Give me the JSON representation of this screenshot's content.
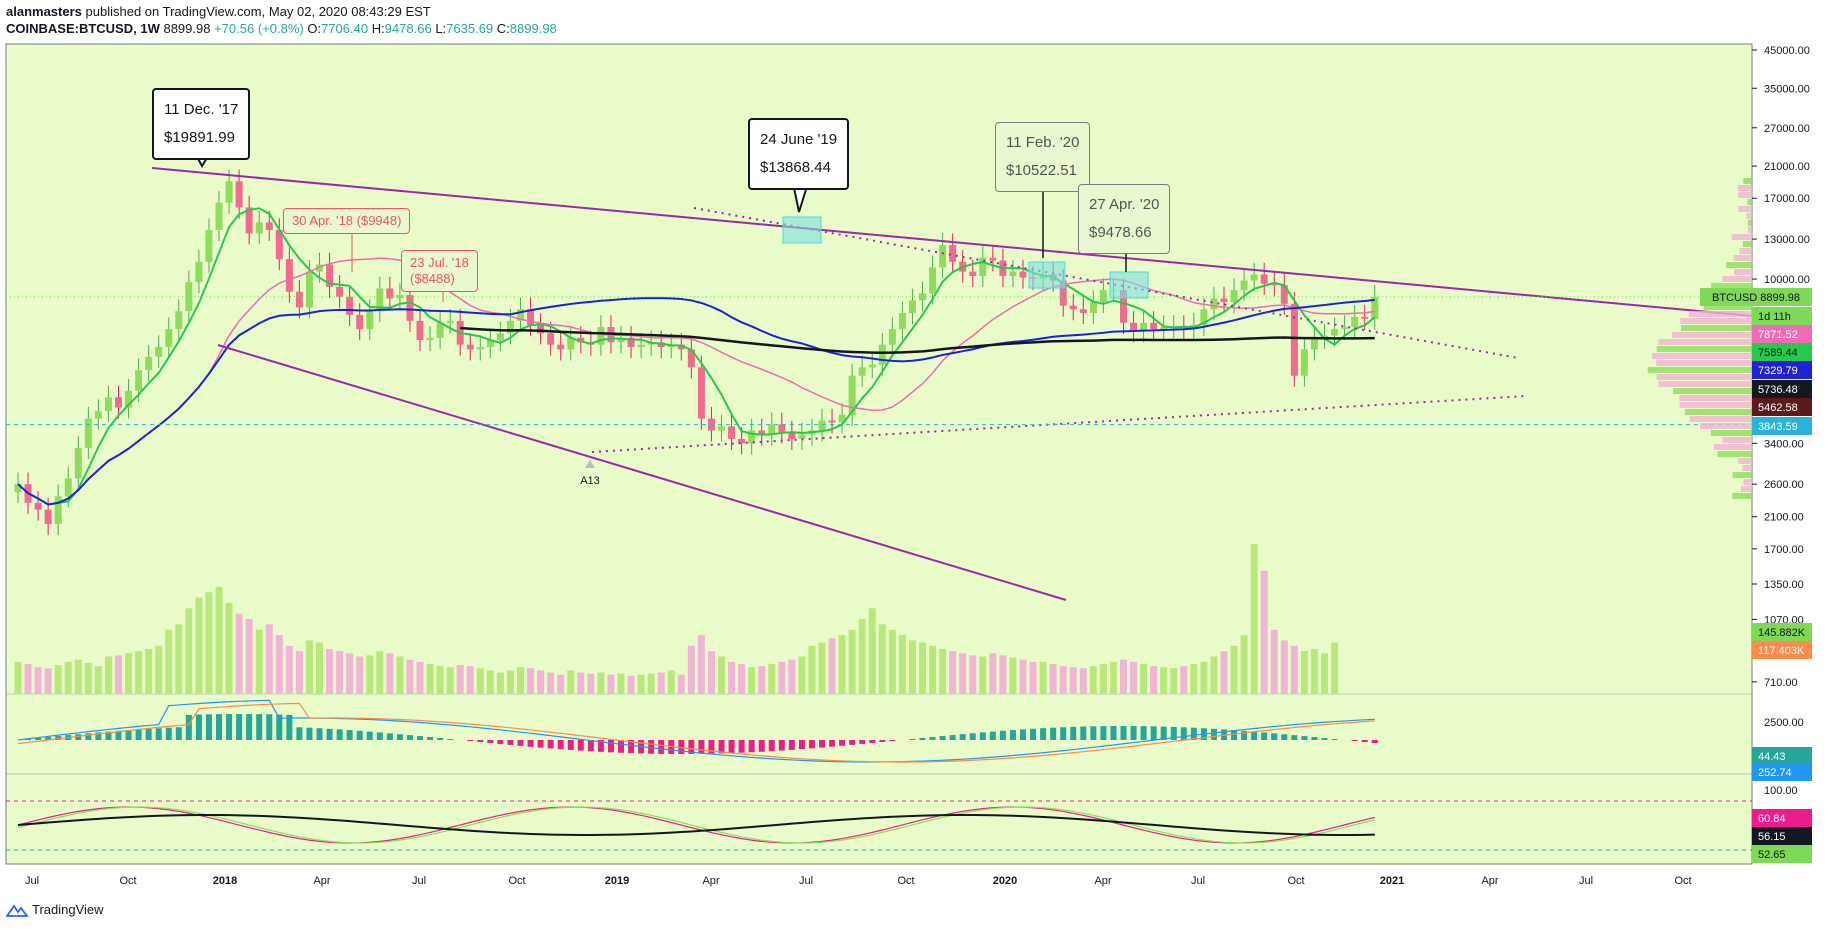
{
  "header": {
    "author": "alanmasters",
    "published": "published on TradingView.com, May 02, 2020 08:43:29 EST",
    "symbol": "COINBASE:BTCUSD, 1W",
    "last": "8899.98",
    "change": "+70.56 (+0.8%)",
    "open_label": "O:",
    "open": "7706.40",
    "high_label": "H:",
    "high": "9478.66",
    "low_label": "L:",
    "low": "7635.69",
    "close_label": "C:",
    "close": "8899.98"
  },
  "footer": {
    "brand": "TradingView",
    "icon": "tradingview-logo-icon"
  },
  "colors": {
    "background": "#e8fbc9",
    "up": "#7ed957",
    "down": "#f7525f",
    "trend": "#9c27b0",
    "ma_blue": "#1e22d6",
    "ma_pink": "#f06bb5"
  },
  "callouts": [
    {
      "date": "11 Dec. '17",
      "price": "$19891.99",
      "style": "dark"
    },
    {
      "date": "24 June '19",
      "price": "$13868.44",
      "style": "dark"
    },
    {
      "date": "11 Feb. '20",
      "price": "$10522.51",
      "style": "grey"
    },
    {
      "date": "27 Apr. '20",
      "price": "$9478.66",
      "style": "grey"
    },
    {
      "text": "30 Apr. '18 ($9948)",
      "style": "orange"
    },
    {
      "line1": "23 Jul. '18",
      "line2": "($8488)",
      "style": "orange"
    }
  ],
  "chart_data": {
    "type": "candlestick",
    "symbol": "COINBASE:BTCUSD",
    "interval": "1W",
    "price_axis": {
      "scale": "log",
      "ticks": [
        "45000.00",
        "35000.00",
        "27000.00",
        "21000.00",
        "17000.00",
        "13000.00",
        "10000.00",
        "3400.00",
        "2600.00",
        "2100.00",
        "1700.00",
        "1350.00",
        "1070.00",
        "710.00"
      ]
    },
    "price_tags": [
      {
        "label": "BTCUSD",
        "value": "8899.98",
        "color": "#7ed957"
      },
      {
        "label": "",
        "value": "1d 11h",
        "color": "#7ed957"
      },
      {
        "label": "",
        "value": "7871.52",
        "color": "#f06bb5"
      },
      {
        "label": "",
        "value": "7589.44",
        "color": "#26c94b"
      },
      {
        "label": "",
        "value": "7329.79",
        "color": "#1e22d6"
      },
      {
        "label": "",
        "value": "5736.48",
        "color": "#131722"
      },
      {
        "label": "",
        "value": "5462.58",
        "color": "#5d1a1a"
      },
      {
        "label": "",
        "value": "3843.59",
        "color": "#26b5d9"
      },
      {
        "label": "",
        "value": "145.882K",
        "color": "#7ed957"
      },
      {
        "label": "",
        "value": "117.403K",
        "color": "#ff8a4c"
      }
    ],
    "macd_axis": {
      "ticks": [
        "2500.00"
      ],
      "tags": [
        {
          "value": "44.43",
          "color": "#26a69a"
        },
        {
          "value": "252.74",
          "color": "#2196f3"
        }
      ]
    },
    "rsi_axis": {
      "ticks": [
        "100.00"
      ],
      "tags": [
        {
          "value": "60.84",
          "color": "#e91e8c"
        },
        {
          "value": "56.15",
          "color": "#131722"
        },
        {
          "value": "52.65",
          "color": "#7ed957"
        }
      ]
    },
    "time_axis": [
      "Jul",
      "Oct",
      "2018",
      "Apr",
      "Jul",
      "Oct",
      "2019",
      "Apr",
      "Jul",
      "Oct",
      "2020",
      "Apr",
      "Jul",
      "Oct",
      "2021",
      "Apr",
      "Jul",
      "Oct"
    ],
    "annotation_marker": "A13",
    "weekly_close": [
      2600,
      2300,
      2200,
      2000,
      2400,
      2700,
      3300,
      4000,
      4200,
      4600,
      4300,
      4800,
      5500,
      6000,
      6400,
      7200,
      8100,
      9800,
      11200,
      13800,
      16500,
      19000,
      16000,
      13500,
      14500,
      13800,
      11400,
      9200,
      8300,
      10500,
      11000,
      9500,
      8900,
      7900,
      7200,
      8100,
      9400,
      8800,
      9000,
      7600,
      6700,
      6800,
      7500,
      7600,
      6500,
      6300,
      6400,
      6700,
      7000,
      7600,
      8200,
      7400,
      7000,
      6500,
      6300,
      6800,
      6600,
      6500,
      7300,
      6600,
      6800,
      6400,
      6500,
      6600,
      6400,
      6500,
      6300,
      5600,
      4000,
      3700,
      3800,
      3500,
      3400,
      3700,
      3600,
      3850,
      3650,
      3500,
      3600,
      3700,
      3950,
      3900,
      4100,
      5300,
      5600,
      5700,
      6500,
      7200,
      8000,
      8700,
      9100,
      10800,
      12500,
      11200,
      10500,
      10200,
      11500,
      11300,
      10200,
      10500,
      10100,
      10000,
      10300,
      9900,
      8400,
      8200,
      8000,
      8600,
      9300,
      9300,
      7500,
      7100,
      7500,
      7200,
      7300,
      7300,
      7250,
      7400,
      8200,
      8800,
      8600,
      9300,
      9900,
      10300,
      9700,
      9600,
      8500,
      5300,
      6300,
      6800,
      6900,
      7200,
      7300,
      7800,
      7700,
      8900
    ],
    "volume": [
      30,
      28,
      25,
      24,
      27,
      30,
      32,
      29,
      26,
      35,
      36,
      38,
      40,
      42,
      45,
      60,
      65,
      80,
      90,
      95,
      100,
      85,
      75,
      70,
      60,
      65,
      55,
      45,
      40,
      50,
      48,
      42,
      40,
      38,
      35,
      36,
      40,
      38,
      35,
      32,
      30,
      28,
      26,
      25,
      27,
      26,
      24,
      22,
      20,
      22,
      25,
      24,
      22,
      20,
      18,
      22,
      20,
      19,
      20,
      18,
      19,
      17,
      18,
      19,
      20,
      22,
      18,
      45,
      55,
      40,
      35,
      30,
      28,
      25,
      26,
      28,
      30,
      32,
      35,
      45,
      48,
      52,
      55,
      60,
      70,
      80,
      65,
      60,
      55,
      50,
      48,
      45,
      42,
      40,
      38,
      36,
      35,
      38,
      36,
      34,
      32,
      30,
      30,
      28,
      26,
      25,
      24,
      26,
      28,
      30,
      32,
      30,
      28,
      26,
      25,
      24,
      26,
      28,
      30,
      35,
      40,
      45,
      55,
      140,
      115,
      60,
      50,
      45,
      40,
      42,
      38,
      48
    ]
  }
}
